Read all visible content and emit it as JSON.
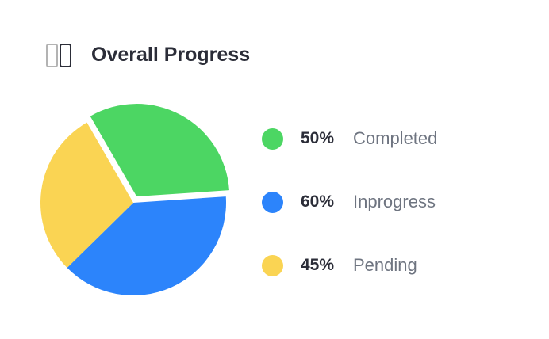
{
  "header": {
    "title": "Overall Progress",
    "icon": "columns-icon"
  },
  "chart_data": {
    "type": "pie",
    "title": "Overall Progress",
    "categories": [
      "Completed",
      "Inprogress",
      "Pending"
    ],
    "values": [
      50,
      60,
      45
    ],
    "labels": [
      "50%",
      "60%",
      "45%"
    ],
    "colors": [
      "#4cd663",
      "#2c84fb",
      "#fad453"
    ],
    "exploded": [
      "Completed"
    ],
    "legend": "right"
  }
}
